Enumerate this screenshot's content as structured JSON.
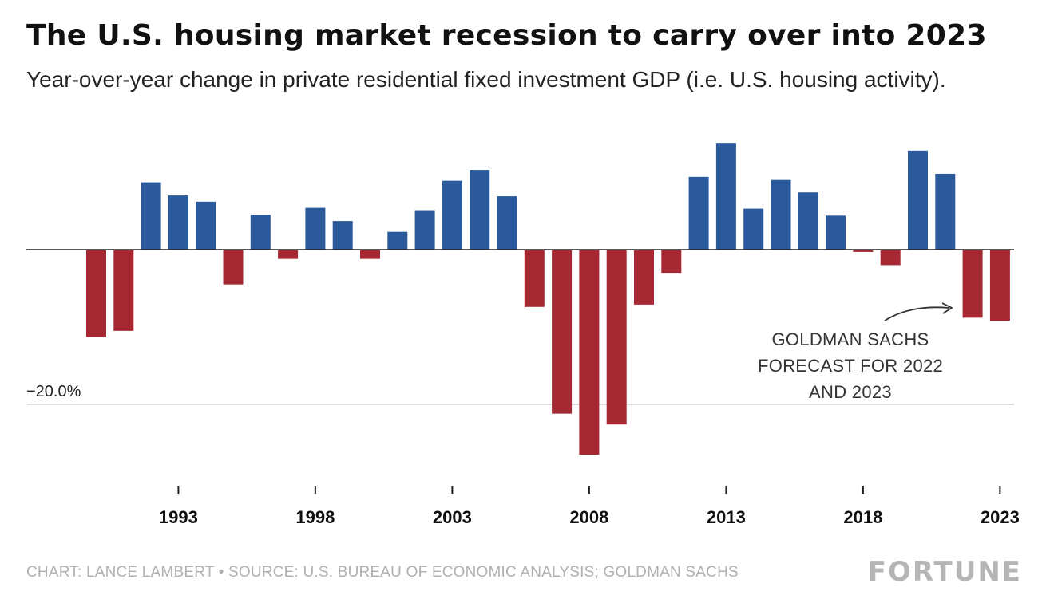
{
  "title": "The U.S. housing market recession to carry over into 2023",
  "subtitle": "Year-over-year change in private residential fixed investment GDP (i.e. U.S. housing activity).",
  "footer": "CHART: LANCE LAMBERT • SOURCE: U.S. BUREAU OF ECONOMIC ANALYSIS; GOLDMAN SACHS",
  "brand": "FORTUNE",
  "colors": {
    "positive": "#2a5a9c",
    "negative": "#a52833",
    "zero_line": "#222222",
    "grid": "#cfcfcf",
    "annotation": "#333333"
  },
  "chart_data": {
    "type": "bar",
    "x": [
      1990,
      1991,
      1992,
      1993,
      1994,
      1995,
      1996,
      1997,
      1998,
      1999,
      2000,
      2001,
      2002,
      2003,
      2004,
      2005,
      2006,
      2007,
      2008,
      2009,
      2010,
      2011,
      2012,
      2013,
      2014,
      2015,
      2016,
      2017,
      2018,
      2019,
      2020,
      2021,
      2022,
      2023
    ],
    "values": [
      -11.3,
      -10.5,
      8.7,
      7.0,
      6.2,
      -4.5,
      4.5,
      -1.2,
      5.4,
      3.7,
      -1.2,
      2.3,
      5.1,
      8.9,
      10.3,
      6.9,
      -7.4,
      -21.2,
      -26.5,
      -22.6,
      -7.1,
      -3.0,
      9.4,
      13.8,
      5.3,
      9.0,
      7.4,
      4.4,
      -0.3,
      -2.0,
      12.8,
      9.8,
      -8.8,
      -9.2
    ],
    "xticks": [
      "1993",
      "1998",
      "2003",
      "2008",
      "2013",
      "2018",
      "2023"
    ],
    "gridline_label": "−20.0%",
    "gridline_value": -20,
    "ylim": [
      -30,
      14
    ],
    "annotation": [
      "GOLDMAN SACHS",
      "FORECAST FOR 2022",
      "AND 2023"
    ],
    "xlabel": "",
    "ylabel": ""
  }
}
